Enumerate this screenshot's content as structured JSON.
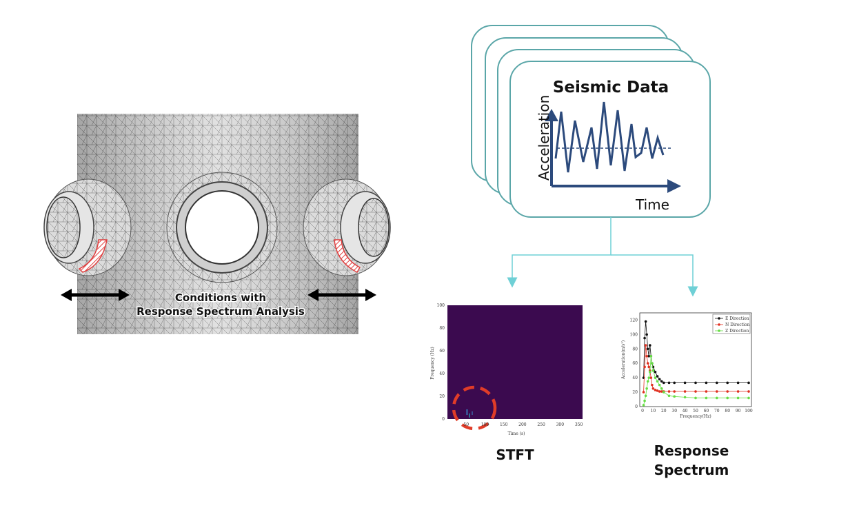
{
  "model_panel": {
    "caption_line1": "Conditions with",
    "caption_line2": "Response Spectrum Analysis"
  },
  "seismic_card": {
    "title": "Seismic Data",
    "y_axis_label": "Acceleration",
    "x_axis_label": "Time"
  },
  "stft": {
    "caption": "STFT",
    "chart_data": {
      "type": "heatmap",
      "xlabel": "Time (s)",
      "ylabel": "Frequency (Hz)",
      "xlim": [
        0,
        360
      ],
      "ylim": [
        0,
        100
      ],
      "x_ticks": [
        "50",
        "100",
        "150",
        "200",
        "250",
        "300",
        "350"
      ],
      "y_ticks": [
        "0",
        "20",
        "40",
        "60",
        "80",
        "100"
      ],
      "background_color": "#3b0a4f",
      "highlight": "dashed red circle around low-frequency region near 50-100 s"
    }
  },
  "response_spectrum": {
    "caption_line1": "Response",
    "caption_line2": "Spectrum",
    "chart_data": {
      "type": "scatter",
      "xlabel": "Frequency(Hz)",
      "ylabel": "Acceleration(m/s²)",
      "xlim": [
        0,
        100
      ],
      "ylim": [
        0,
        130
      ],
      "x_ticks": [
        "0",
        "10",
        "20",
        "30",
        "40",
        "50",
        "60",
        "70",
        "80",
        "90",
        "100"
      ],
      "y_ticks": [
        "0",
        "20",
        "40",
        "60",
        "80",
        "100",
        "120"
      ],
      "legend_position": "top-right",
      "series": [
        {
          "name": "E Direction",
          "color": "#111111",
          "x": [
            1,
            2,
            3,
            4,
            5,
            6,
            7,
            8,
            9,
            10,
            12,
            14,
            16,
            18,
            20,
            25,
            30,
            40,
            50,
            60,
            70,
            80,
            90,
            100
          ],
          "y": [
            40,
            95,
            118,
            100,
            80,
            70,
            85,
            70,
            60,
            55,
            48,
            42,
            38,
            35,
            33,
            33,
            33,
            33,
            33,
            33,
            33,
            33,
            33,
            33
          ]
        },
        {
          "name": "N Direction",
          "color": "#e03020",
          "x": [
            1,
            2,
            3,
            4,
            5,
            6,
            7,
            8,
            9,
            10,
            12,
            14,
            16,
            18,
            20,
            25,
            30,
            40,
            50,
            60,
            70,
            80,
            90,
            100
          ],
          "y": [
            20,
            55,
            85,
            70,
            60,
            55,
            50,
            40,
            30,
            25,
            23,
            22,
            21,
            21,
            21,
            21,
            21,
            21,
            21,
            21,
            21,
            21,
            21,
            21
          ]
        },
        {
          "name": "Z Direction",
          "color": "#66dd44",
          "x": [
            1,
            2,
            3,
            4,
            5,
            6,
            7,
            8,
            9,
            10,
            12,
            14,
            16,
            18,
            20,
            25,
            30,
            40,
            50,
            60,
            70,
            80,
            90,
            100
          ],
          "y": [
            2,
            8,
            15,
            25,
            35,
            40,
            48,
            70,
            60,
            50,
            40,
            35,
            30,
            25,
            20,
            15,
            14,
            13,
            12,
            12,
            12,
            12,
            12,
            12
          ]
        }
      ]
    }
  }
}
